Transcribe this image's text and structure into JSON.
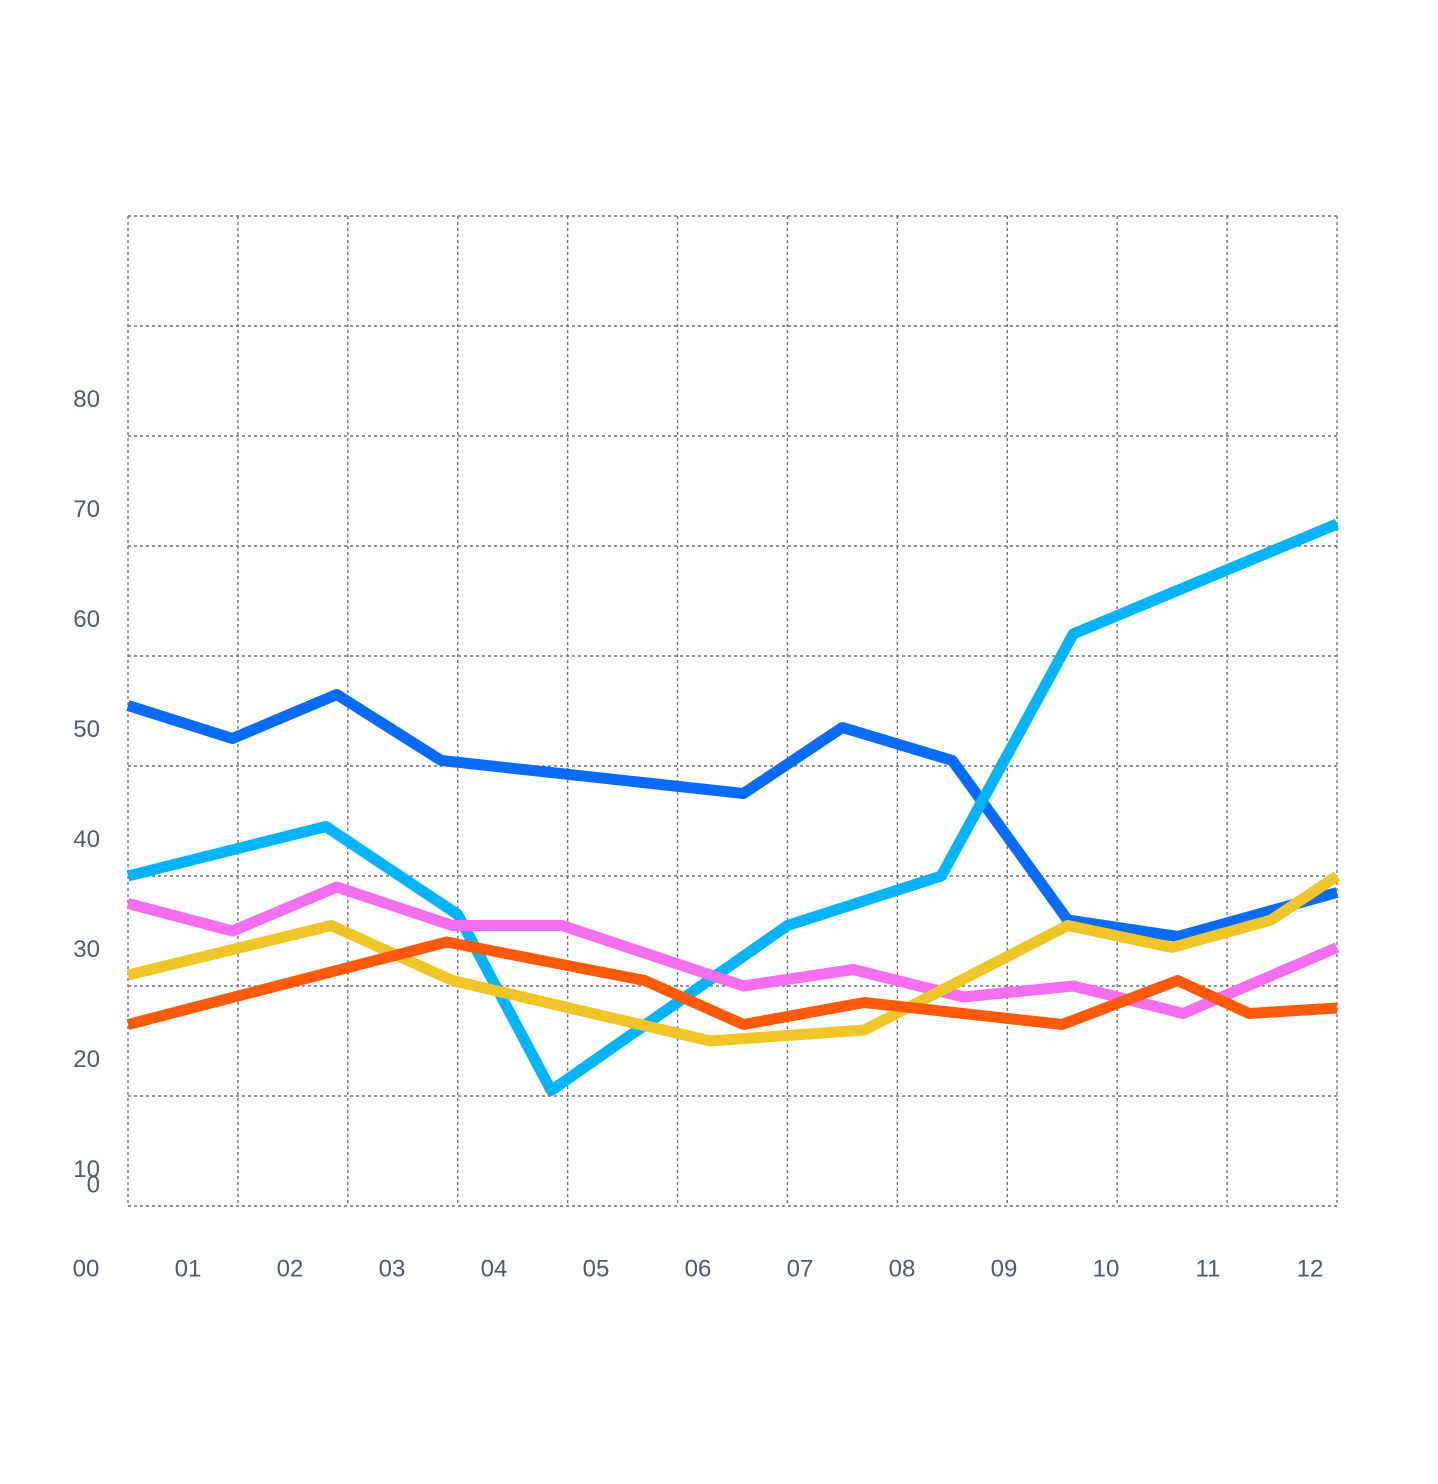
{
  "chart_data": {
    "type": "line",
    "title": "",
    "xlabel": "",
    "ylabel": "",
    "x_tick_labels": [
      "00",
      "01",
      "02",
      "03",
      "04",
      "05",
      "06",
      "07",
      "08",
      "09",
      "10",
      "11",
      "12"
    ],
    "y_tick_labels": [
      "0",
      "10",
      "20",
      "30",
      "40",
      "50",
      "60",
      "70",
      "80"
    ],
    "ylim": [
      0,
      90
    ],
    "xlim": [
      0,
      11
    ],
    "grid": true,
    "legend": "none",
    "series": [
      {
        "color": "#0a6cff",
        "x": [
          0,
          0.95,
          1.9,
          2.85,
          5.6,
          6.5,
          7.5,
          8.55,
          9.55,
          11
        ],
        "y": [
          45.5,
          42.5,
          46.5,
          40.5,
          37.5,
          43.5,
          40.5,
          26,
          24.5,
          28.5
        ]
      },
      {
        "color": "#00b4ff",
        "x": [
          0,
          1.8,
          3,
          3.85,
          6,
          7.4,
          8.6,
          11
        ],
        "y": [
          30,
          34.5,
          26.5,
          10.5,
          25.5,
          30,
          52,
          62
        ]
      },
      {
        "color": "#f56ef0",
        "x": [
          0,
          0.95,
          1.9,
          2.95,
          3.95,
          5.6,
          6.6,
          7.6,
          8.6,
          9.6,
          11
        ],
        "y": [
          27.5,
          25,
          29,
          25.5,
          25.5,
          20,
          21.5,
          19,
          20,
          17.5,
          23.5
        ]
      },
      {
        "color": "#f0c528",
        "x": [
          0,
          1.85,
          2.95,
          5.3,
          6.7,
          8.55,
          9.5,
          10.4,
          11
        ],
        "y": [
          21,
          25.5,
          20.5,
          15,
          16,
          25.5,
          23.5,
          26,
          30
        ]
      },
      {
        "color": "#ff5a0a",
        "x": [
          0,
          2.9,
          4.7,
          5.6,
          6.7,
          8.5,
          9.55,
          10.2,
          11
        ],
        "y": [
          16.5,
          24,
          20.5,
          16.5,
          18.5,
          16.5,
          20.5,
          17.5,
          18
        ]
      }
    ]
  }
}
